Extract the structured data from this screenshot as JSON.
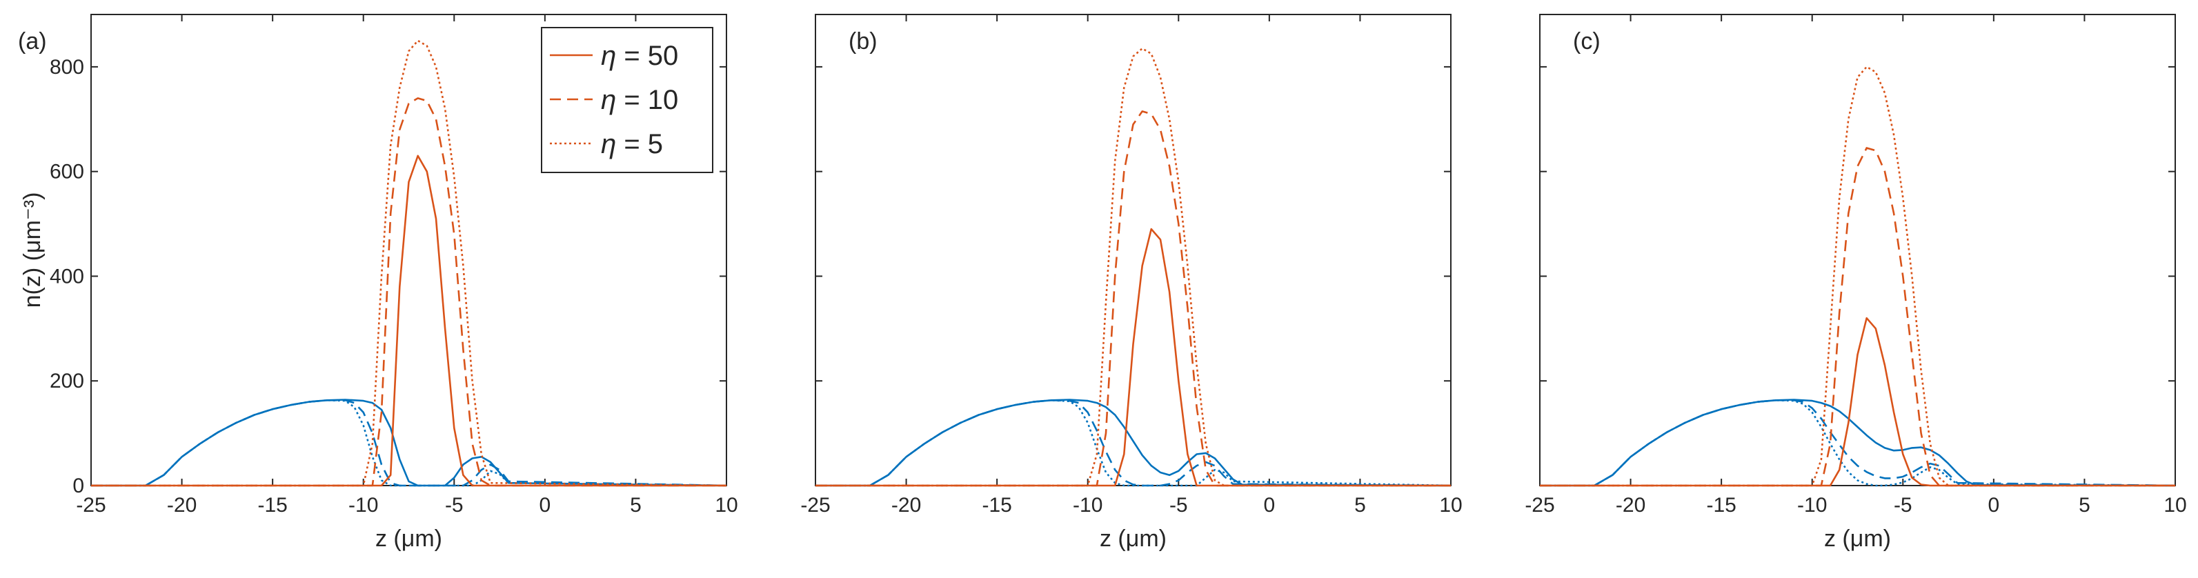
{
  "chart_data": [
    {
      "type": "line",
      "panel_label": "(a)",
      "xlabel": "z (μm)",
      "ylabel": "n(z) (μm⁻³)",
      "xlim": [
        -25,
        10
      ],
      "ylim": [
        0,
        900
      ],
      "xticks": [
        -25,
        -20,
        -15,
        -10,
        -5,
        0,
        5,
        10
      ],
      "yticks": [
        0,
        200,
        400,
        600,
        800
      ],
      "show_ylabel": true,
      "show_yticklabels": true,
      "legend": {
        "placement": "top-right-inside",
        "entries": [
          {
            "prefix": "η",
            "value": " = 50",
            "style": "solid"
          },
          {
            "prefix": "η",
            "value": " = 10",
            "style": "dashed"
          },
          {
            "prefix": "η",
            "value": " = 5",
            "style": "dotted"
          }
        ]
      },
      "series": [
        {
          "name": "red η=50",
          "color": "#D95319",
          "style": "solid",
          "x": [
            -25,
            -9,
            -8.5,
            -8,
            -7.5,
            -7,
            -6.5,
            -6,
            -5.5,
            -5,
            -4.5,
            -4,
            -3.5,
            10
          ],
          "y": [
            0,
            0,
            20,
            380,
            580,
            630,
            600,
            510,
            300,
            110,
            20,
            0,
            0,
            0
          ]
        },
        {
          "name": "red η=10",
          "color": "#D95319",
          "style": "dashed",
          "x": [
            -25,
            -9.5,
            -9,
            -8.5,
            -8,
            -7.5,
            -7,
            -6.5,
            -6,
            -5.5,
            -5,
            -4.5,
            -4,
            -3.5,
            -3,
            10
          ],
          "y": [
            0,
            0,
            140,
            520,
            680,
            730,
            740,
            735,
            700,
            610,
            480,
            260,
            80,
            10,
            0,
            0
          ]
        },
        {
          "name": "red η=5",
          "color": "#D95319",
          "style": "dotted",
          "x": [
            -25,
            -10,
            -9.5,
            -9,
            -8.5,
            -8,
            -7.5,
            -7,
            -6.5,
            -6,
            -5.5,
            -5,
            -4.5,
            -4,
            -3.5,
            -3,
            10
          ],
          "y": [
            0,
            0,
            80,
            400,
            650,
            760,
            830,
            850,
            840,
            800,
            720,
            590,
            420,
            200,
            60,
            5,
            0
          ]
        },
        {
          "name": "blue η=50",
          "color": "#0072BD",
          "style": "solid",
          "x": [
            -25,
            -22,
            -21,
            -20,
            -19,
            -18,
            -17,
            -16,
            -15,
            -14,
            -13,
            -12,
            -11,
            -10,
            -9.5,
            -9,
            -8.5,
            -8,
            -7.5,
            -7,
            -5.5,
            -5,
            -4.5,
            -4,
            -3.5,
            -3,
            -2.5,
            -2,
            10
          ],
          "y": [
            0,
            0,
            20,
            55,
            80,
            102,
            120,
            135,
            146,
            154,
            160,
            163,
            164,
            162,
            158,
            145,
            110,
            50,
            8,
            0,
            0,
            15,
            40,
            52,
            55,
            45,
            25,
            5,
            0
          ]
        },
        {
          "name": "blue η=10",
          "color": "#0072BD",
          "style": "dashed",
          "x": [
            -25,
            -22,
            -21,
            -20,
            -19,
            -18,
            -17,
            -16,
            -15,
            -14,
            -13,
            -12,
            -11,
            -10.5,
            -10,
            -9.5,
            -9,
            -8.5,
            -8,
            -4.5,
            -4,
            -3.5,
            -3,
            -2.5,
            -2,
            10
          ],
          "y": [
            0,
            0,
            20,
            55,
            80,
            102,
            120,
            135,
            146,
            154,
            160,
            163,
            163,
            158,
            140,
            100,
            40,
            5,
            0,
            0,
            10,
            30,
            40,
            30,
            8,
            0
          ]
        },
        {
          "name": "blue η=5",
          "color": "#0072BD",
          "style": "dotted",
          "x": [
            -25,
            -22,
            -21,
            -20,
            -19,
            -18,
            -17,
            -16,
            -15,
            -14,
            -13,
            -12,
            -11,
            -10.5,
            -10,
            -9.5,
            -9,
            -8.5,
            -4,
            -3.5,
            -3,
            -2.5,
            -2,
            10
          ],
          "y": [
            0,
            0,
            20,
            55,
            80,
            102,
            120,
            135,
            146,
            154,
            160,
            163,
            162,
            150,
            115,
            55,
            10,
            0,
            0,
            10,
            28,
            22,
            5,
            0
          ]
        }
      ]
    },
    {
      "type": "line",
      "panel_label": "(b)",
      "xlabel": "z (μm)",
      "xlim": [
        -25,
        10
      ],
      "ylim": [
        0,
        900
      ],
      "xticks": [
        -25,
        -20,
        -15,
        -10,
        -5,
        0,
        5,
        10
      ],
      "yticks": [
        0,
        200,
        400,
        600,
        800
      ],
      "show_ylabel": false,
      "show_yticklabels": false,
      "series": [
        {
          "name": "red η=50",
          "color": "#D95319",
          "style": "solid",
          "x": [
            -25,
            -8.5,
            -8,
            -7.5,
            -7,
            -6.5,
            -6,
            -5.5,
            -5,
            -4.5,
            -4,
            10
          ],
          "y": [
            0,
            0,
            60,
            270,
            420,
            490,
            470,
            370,
            200,
            60,
            0,
            0
          ]
        },
        {
          "name": "red η=10",
          "color": "#D95319",
          "style": "dashed",
          "x": [
            -25,
            -9.5,
            -9,
            -8.5,
            -8,
            -7.5,
            -7,
            -6.5,
            -6,
            -5.5,
            -5,
            -4.5,
            -4,
            -3.5,
            -3,
            10
          ],
          "y": [
            0,
            0,
            100,
            400,
            600,
            690,
            715,
            710,
            680,
            610,
            500,
            340,
            150,
            30,
            0,
            0
          ]
        },
        {
          "name": "red η=5",
          "color": "#D95319",
          "style": "dotted",
          "x": [
            -25,
            -10,
            -9.5,
            -9,
            -8.5,
            -8,
            -7.5,
            -7,
            -6.5,
            -6,
            -5.5,
            -5,
            -4.5,
            -4,
            -3.5,
            -3,
            -2.5,
            10
          ],
          "y": [
            0,
            0,
            60,
            350,
            620,
            760,
            820,
            835,
            825,
            780,
            700,
            580,
            420,
            230,
            80,
            10,
            0,
            0
          ]
        },
        {
          "name": "blue η=50",
          "color": "#0072BD",
          "style": "solid",
          "x": [
            -25,
            -22,
            -21,
            -20,
            -19,
            -18,
            -17,
            -16,
            -15,
            -14,
            -13,
            -12,
            -11,
            -10,
            -9.5,
            -9,
            -8.5,
            -8,
            -7.5,
            -7,
            -6.5,
            -6,
            -5.5,
            -5,
            -4.5,
            -4,
            -3.5,
            -3,
            -2.5,
            -2,
            -1.5,
            10
          ],
          "y": [
            0,
            0,
            20,
            55,
            80,
            102,
            120,
            135,
            146,
            154,
            160,
            163,
            164,
            162,
            158,
            150,
            135,
            112,
            85,
            58,
            38,
            25,
            20,
            28,
            45,
            60,
            62,
            52,
            32,
            12,
            2,
            0
          ]
        },
        {
          "name": "blue η=10",
          "color": "#0072BD",
          "style": "dashed",
          "x": [
            -25,
            -22,
            -21,
            -20,
            -19,
            -18,
            -17,
            -16,
            -15,
            -14,
            -13,
            -12,
            -11,
            -10.5,
            -10,
            -9.5,
            -9,
            -8.5,
            -8,
            -7.5,
            -7,
            -6.5,
            -6,
            -5.5,
            -5,
            -4.5,
            -4,
            -3.5,
            -3,
            -2.5,
            -2,
            10
          ],
          "y": [
            0,
            0,
            20,
            55,
            80,
            102,
            120,
            135,
            146,
            154,
            160,
            163,
            162,
            158,
            140,
            105,
            65,
            30,
            10,
            2,
            0,
            0,
            0,
            3,
            10,
            25,
            38,
            45,
            38,
            18,
            3,
            0
          ]
        },
        {
          "name": "blue η=5",
          "color": "#0072BD",
          "style": "dotted",
          "x": [
            -25,
            -22,
            -21,
            -20,
            -19,
            -18,
            -17,
            -16,
            -15,
            -14,
            -13,
            -12,
            -11,
            -10.5,
            -10,
            -9.5,
            -9,
            -8.5,
            -8,
            -4,
            -3.5,
            -3,
            -2.5,
            -2,
            10
          ],
          "y": [
            0,
            0,
            20,
            55,
            80,
            102,
            120,
            135,
            146,
            154,
            160,
            163,
            161,
            150,
            120,
            70,
            25,
            5,
            0,
            0,
            15,
            30,
            25,
            8,
            0
          ]
        }
      ]
    },
    {
      "type": "line",
      "panel_label": "(c)",
      "xlabel": "z (μm)",
      "xlim": [
        -25,
        10
      ],
      "ylim": [
        0,
        900
      ],
      "xticks": [
        -25,
        -20,
        -15,
        -10,
        -5,
        0,
        5,
        10
      ],
      "yticks": [
        0,
        200,
        400,
        600,
        800
      ],
      "show_ylabel": false,
      "show_yticklabels": false,
      "series": [
        {
          "name": "red η=50",
          "color": "#D95319",
          "style": "solid",
          "x": [
            -25,
            -9,
            -8.5,
            -8,
            -7.5,
            -7,
            -6.5,
            -6,
            -5.5,
            -5,
            -4.5,
            -4,
            -3.5,
            10
          ],
          "y": [
            0,
            0,
            30,
            120,
            250,
            320,
            300,
            230,
            140,
            60,
            15,
            2,
            0,
            0
          ]
        },
        {
          "name": "red η=10",
          "color": "#D95319",
          "style": "dashed",
          "x": [
            -25,
            -9.5,
            -9,
            -8.5,
            -8,
            -7.5,
            -7,
            -6.5,
            -6,
            -5.5,
            -5,
            -4.5,
            -4,
            -3.5,
            -3,
            10
          ],
          "y": [
            0,
            0,
            80,
            330,
            520,
            610,
            645,
            640,
            600,
            520,
            400,
            250,
            100,
            20,
            0,
            0
          ]
        },
        {
          "name": "red η=5",
          "color": "#D95319",
          "style": "dotted",
          "x": [
            -25,
            -10,
            -9.5,
            -9,
            -8.5,
            -8,
            -7.5,
            -7,
            -6.5,
            -6,
            -5.5,
            -5,
            -4.5,
            -4,
            -3.5,
            -3,
            -2.5,
            10
          ],
          "y": [
            0,
            0,
            50,
            300,
            550,
            700,
            780,
            800,
            790,
            750,
            670,
            550,
            400,
            220,
            80,
            15,
            0,
            0
          ]
        },
        {
          "name": "blue η=50",
          "color": "#0072BD",
          "style": "solid",
          "x": [
            -25,
            -22,
            -21,
            -20,
            -19,
            -18,
            -17,
            -16,
            -15,
            -14,
            -13,
            -12,
            -11,
            -10,
            -9.5,
            -9,
            -8.5,
            -8,
            -7.5,
            -7,
            -6.5,
            -6,
            -5.5,
            -5,
            -4.5,
            -4,
            -3.5,
            -3,
            -2.5,
            -2,
            -1.5,
            -1,
            10
          ],
          "y": [
            0,
            0,
            20,
            55,
            80,
            102,
            120,
            135,
            146,
            154,
            160,
            163,
            164,
            162,
            158,
            152,
            142,
            128,
            112,
            96,
            82,
            72,
            67,
            68,
            72,
            73,
            68,
            58,
            42,
            24,
            8,
            1,
            0
          ]
        },
        {
          "name": "blue η=10",
          "color": "#0072BD",
          "style": "dashed",
          "x": [
            -25,
            -22,
            -21,
            -20,
            -19,
            -18,
            -17,
            -16,
            -15,
            -14,
            -13,
            -12,
            -11,
            -10.5,
            -10,
            -9.5,
            -9,
            -8.5,
            -8,
            -7.5,
            -7,
            -6.5,
            -6,
            -5.5,
            -5,
            -4.5,
            -4,
            -3.5,
            -3,
            -2.5,
            -2,
            10
          ],
          "y": [
            0,
            0,
            20,
            55,
            80,
            102,
            120,
            135,
            146,
            154,
            160,
            163,
            163,
            160,
            148,
            128,
            102,
            78,
            55,
            38,
            26,
            18,
            14,
            14,
            17,
            25,
            35,
            42,
            38,
            22,
            5,
            0
          ]
        },
        {
          "name": "blue η=5",
          "color": "#0072BD",
          "style": "dotted",
          "x": [
            -25,
            -22,
            -21,
            -20,
            -19,
            -18,
            -17,
            -16,
            -15,
            -14,
            -13,
            -12,
            -11,
            -10.5,
            -10,
            -9.5,
            -9,
            -8.5,
            -8,
            -7.5,
            -7,
            -6.5,
            -6,
            -5.5,
            -5,
            -4.5,
            -4,
            -3.5,
            -3,
            -2.5,
            -2,
            10
          ],
          "y": [
            0,
            0,
            20,
            55,
            80,
            102,
            120,
            135,
            146,
            154,
            160,
            163,
            162,
            156,
            140,
            112,
            80,
            50,
            26,
            10,
            3,
            0,
            0,
            2,
            6,
            14,
            25,
            35,
            30,
            15,
            3,
            0
          ]
        }
      ]
    }
  ]
}
